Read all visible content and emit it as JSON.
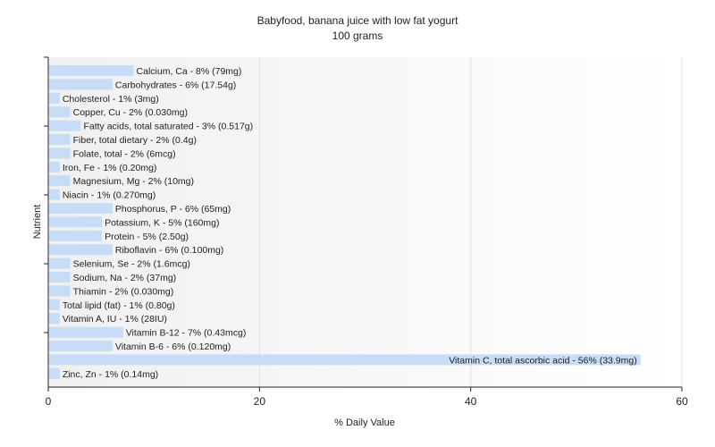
{
  "chart_data": {
    "type": "bar",
    "orientation": "horizontal",
    "title": "Babyfood, banana juice with low fat yogurt",
    "subtitle": "100 grams",
    "xlabel": "% Daily Value",
    "ylabel": "Nutrient",
    "xlim": [
      0,
      60
    ],
    "xticks": [
      0,
      20,
      40,
      60
    ],
    "grid": true,
    "bar_color": "#c6dcf7",
    "categories": [
      "Calcium, Ca",
      "Carbohydrates",
      "Cholesterol",
      "Copper, Cu",
      "Fatty acids, total saturated",
      "Fiber, total dietary",
      "Folate, total",
      "Iron, Fe",
      "Magnesium, Mg",
      "Niacin",
      "Phosphorus, P",
      "Potassium, K",
      "Protein",
      "Riboflavin",
      "Selenium, Se",
      "Sodium, Na",
      "Thiamin",
      "Total lipid (fat)",
      "Vitamin A, IU",
      "Vitamin B-12",
      "Vitamin B-6",
      "Vitamin C, total ascorbic acid",
      "Zinc, Zn"
    ],
    "values": [
      8,
      6,
      1,
      2,
      3,
      2,
      2,
      1,
      2,
      1,
      6,
      5,
      5,
      6,
      2,
      2,
      2,
      1,
      1,
      7,
      6,
      56,
      1
    ],
    "labels": [
      "Calcium, Ca - 8% (79mg)",
      "Carbohydrates - 6% (17.54g)",
      "Cholesterol - 1% (3mg)",
      "Copper, Cu - 2% (0.030mg)",
      "Fatty acids, total saturated - 3% (0.517g)",
      "Fiber, total dietary - 2% (0.4g)",
      "Folate, total - 2% (6mcg)",
      "Iron, Fe - 1% (0.20mg)",
      "Magnesium, Mg - 2% (10mg)",
      "Niacin - 1% (0.270mg)",
      "Phosphorus, P - 6% (65mg)",
      "Potassium, K - 5% (160mg)",
      "Protein - 5% (2.50g)",
      "Riboflavin - 6% (0.100mg)",
      "Selenium, Se - 2% (1.6mcg)",
      "Sodium, Na - 2% (37mg)",
      "Thiamin - 2% (0.030mg)",
      "Total lipid (fat) - 1% (0.80g)",
      "Vitamin A, IU - 1% (28IU)",
      "Vitamin B-12 - 7% (0.43mcg)",
      "Vitamin B-6 - 6% (0.120mg)",
      "Vitamin C, total ascorbic acid - 56% (33.9mg)",
      "Zinc, Zn - 1% (0.14mg)"
    ]
  }
}
